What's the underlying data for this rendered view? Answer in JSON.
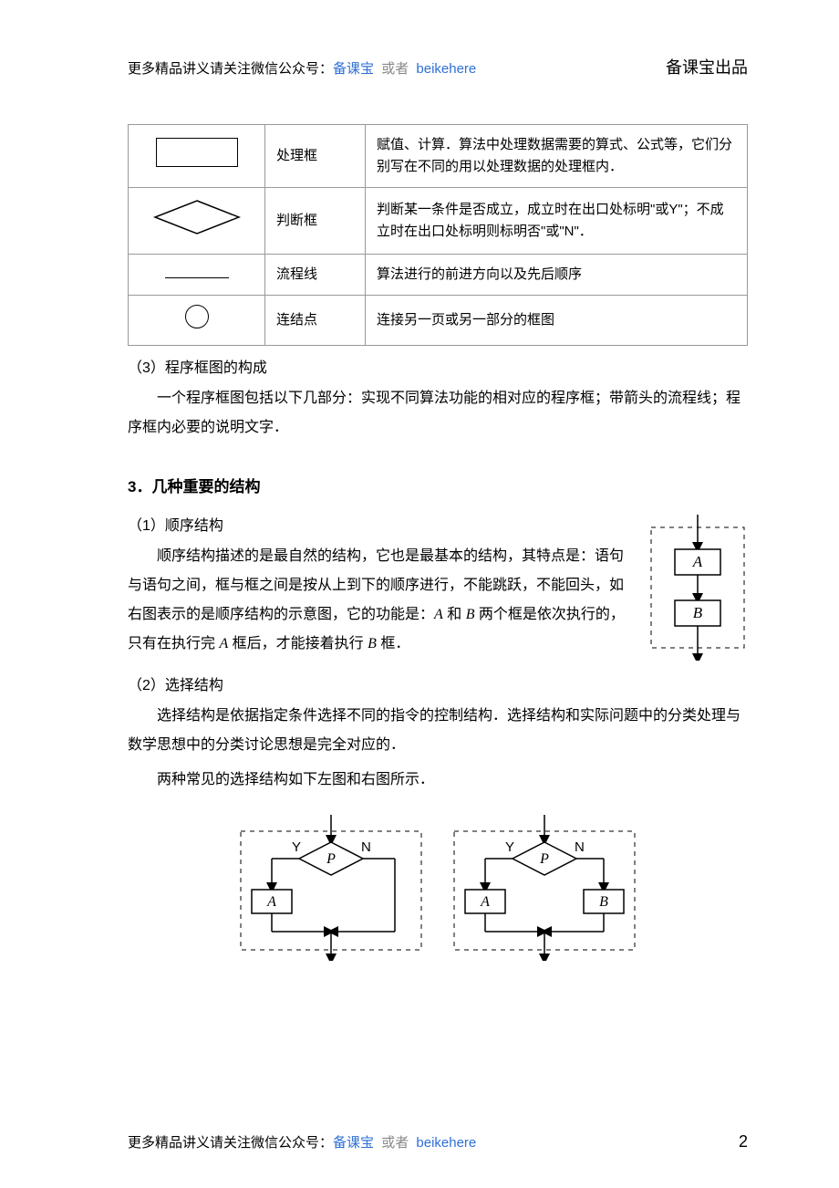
{
  "header": {
    "prefix": "更多精品讲义请关注微信公众号：",
    "link1": "备课宝",
    "or": "或者",
    "link2": "beikehere",
    "right": "备课宝出品"
  },
  "table": {
    "rows": [
      {
        "shape": "rect",
        "name": "处理框",
        "desc": "赋值、计算．算法中处理数据需要的算式、公式等，它们分别写在不同的用以处理数据的处理框内．"
      },
      {
        "shape": "diamond",
        "name": "判断框",
        "desc": "判断某一条件是否成立，成立时在出口处标明\"或Y\"；不成立时在出口处标明则标明否\"或\"N\"．"
      },
      {
        "shape": "line",
        "name": "流程线",
        "desc": "算法进行的前进方向以及先后顺序"
      },
      {
        "shape": "circle",
        "name": "连结点",
        "desc": "连接另一页或另一部分的框图"
      }
    ]
  },
  "sec3_title": "（3）程序框图的构成",
  "sec3_para": "一个程序框图包括以下几部分：实现不同算法功能的相对应的程序框；带箭头的流程线；程序框内必要的说明文字．",
  "heading3": "3．几种重要的结构",
  "sub1_title": "（1）顺序结构",
  "sub1_para_html": "顺序结构描述的是最自然的结构，它也是最基本的结构，其特点是：语句与语句之间，框与框之间是按从上到下的顺序进行，不能跳跃，不能回头，如右图表示的是顺序结构的示意图，它的功能是：<span class=\"italic\">A</span> 和 <span class=\"italic\">B</span> 两个框是依次执行的，只有在执行完 <span class=\"italic\">A</span> 框后，才能接着执行 <span class=\"italic\">B</span> 框．",
  "sub2_title": "（2）选择结构",
  "sub2_para1": "选择结构是依据指定条件选择不同的指令的控制结构．选择结构和实际问题中的分类处理与数学思想中的分类讨论思想是完全对应的．",
  "sub2_para2": "两种常见的选择结构如下左图和右图所示．",
  "seq_diagram": {
    "A": "A",
    "B": "B",
    "border_color": "#000",
    "dash": "4,4",
    "bg": "#ffffff"
  },
  "sel_diagram": {
    "P": "P",
    "A": "A",
    "B": "B",
    "Y": "Y",
    "N": "N"
  },
  "footer": {
    "prefix": "更多精品讲义请关注微信公众号：",
    "link1": "备课宝",
    "or": "或者",
    "link2": "beikehere",
    "page": "2"
  }
}
